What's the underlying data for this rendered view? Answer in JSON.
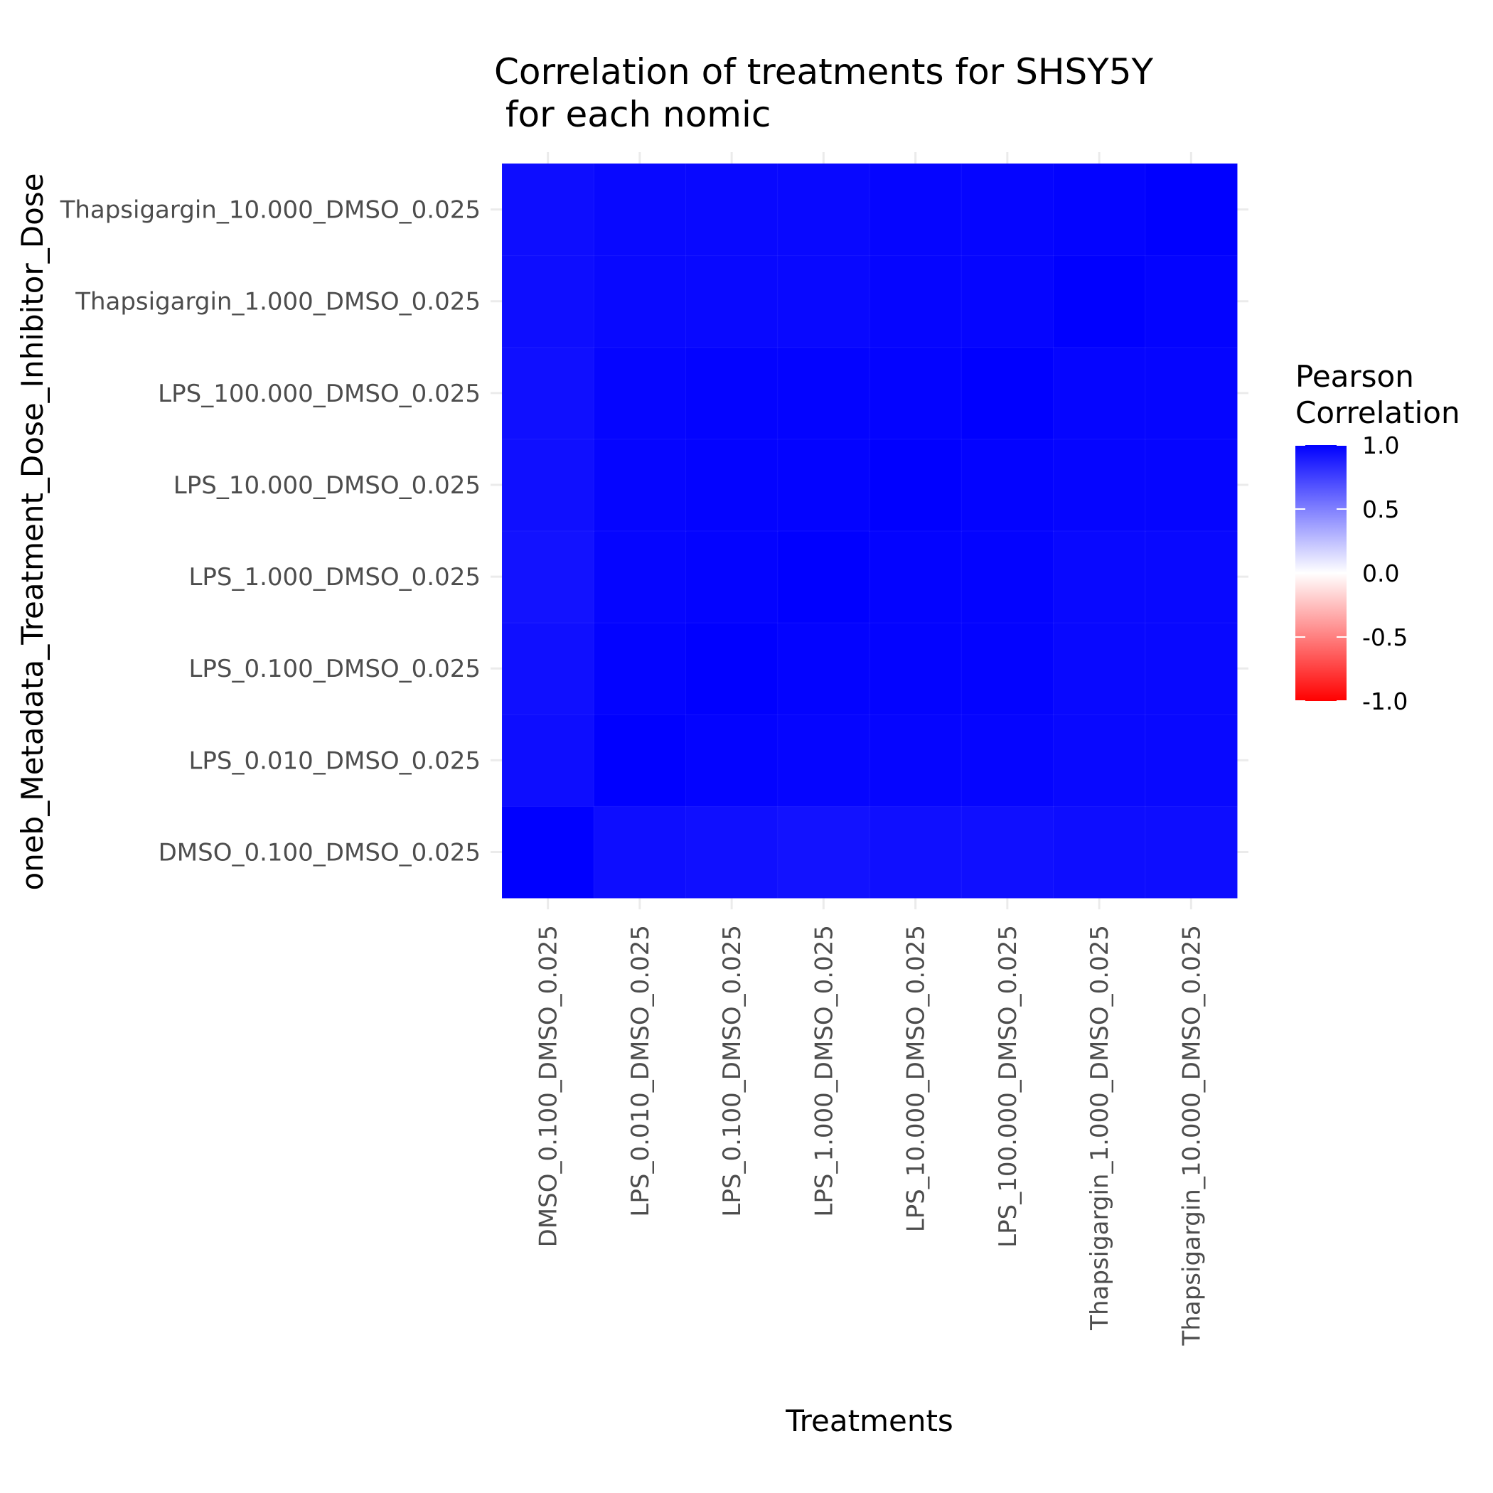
{
  "chart_data": {
    "type": "heatmap",
    "title_lines": [
      "Correlation of treatments for SHSY5Y",
      " for each nomic"
    ],
    "xlabel": "Treatments",
    "ylabel": "oneb_Metadata_Treatment_Dose_Inhibitor_Dose",
    "x_categories": [
      "DMSO_0.100_DMSO_0.025",
      "LPS_0.010_DMSO_0.025",
      "LPS_0.100_DMSO_0.025",
      "LPS_1.000_DMSO_0.025",
      "LPS_10.000_DMSO_0.025",
      "LPS_100.000_DMSO_0.025",
      "Thapsigargin_1.000_DMSO_0.025",
      "Thapsigargin_10.000_DMSO_0.025"
    ],
    "y_categories": [
      "DMSO_0.100_DMSO_0.025",
      "LPS_0.010_DMSO_0.025",
      "LPS_0.100_DMSO_0.025",
      "LPS_1.000_DMSO_0.025",
      "LPS_10.000_DMSO_0.025",
      "LPS_100.000_DMSO_0.025",
      "Thapsigargin_1.000_DMSO_0.025",
      "Thapsigargin_10.000_DMSO_0.025"
    ],
    "values": [
      [
        1.0,
        0.95,
        0.94,
        0.93,
        0.94,
        0.94,
        0.95,
        0.95
      ],
      [
        0.95,
        1.0,
        0.99,
        0.98,
        0.98,
        0.98,
        0.97,
        0.97
      ],
      [
        0.94,
        0.99,
        1.0,
        0.99,
        0.99,
        0.99,
        0.97,
        0.97
      ],
      [
        0.93,
        0.98,
        0.99,
        1.0,
        0.99,
        0.99,
        0.97,
        0.97
      ],
      [
        0.94,
        0.98,
        0.99,
        0.99,
        1.0,
        0.99,
        0.98,
        0.98
      ],
      [
        0.94,
        0.98,
        0.99,
        0.99,
        0.99,
        1.0,
        0.98,
        0.98
      ],
      [
        0.95,
        0.97,
        0.97,
        0.97,
        0.98,
        0.98,
        1.0,
        0.99
      ],
      [
        0.95,
        0.97,
        0.97,
        0.97,
        0.98,
        0.98,
        0.99,
        1.0
      ]
    ],
    "color_scale": {
      "low": "#FF0000",
      "mid": "#FFFFFF",
      "high": "#0000FF",
      "limits": [
        -1.0,
        1.0
      ]
    },
    "legend": {
      "title_lines": [
        "Pearson",
        "Correlation"
      ],
      "breaks": [
        1.0,
        0.5,
        0.0,
        -0.5,
        -1.0
      ],
      "break_labels": [
        "1.0",
        "0.5",
        "0.0",
        "-0.5",
        "-1.0"
      ],
      "position": "right"
    },
    "grid": true
  }
}
